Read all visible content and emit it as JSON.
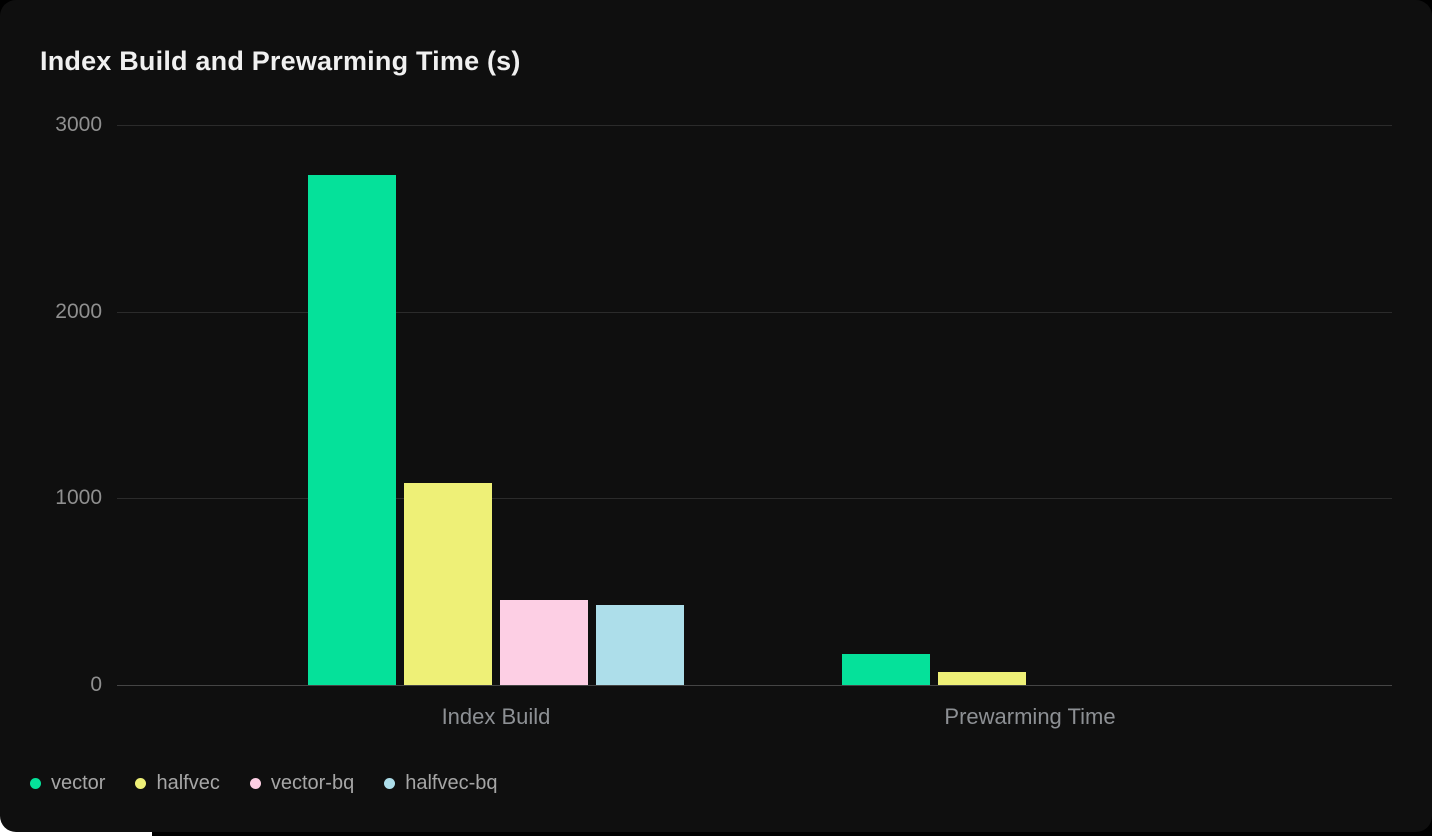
{
  "page": {
    "background_color": "#000000",
    "card_background_color": "#0f0f0f",
    "corner_peek_color": "#ffffff"
  },
  "chart_data": {
    "type": "bar",
    "title": "Index Build and Prewarming Time (s)",
    "categories": [
      "Index Build",
      "Prewarming Time"
    ],
    "series": [
      {
        "name": "vector",
        "color": "#05e19a",
        "values": [
          2730,
          165
        ]
      },
      {
        "name": "halfvec",
        "color": "#eef077",
        "values": [
          1080,
          70
        ]
      },
      {
        "name": "vector-bq",
        "color": "#fdcfe4",
        "values": [
          455,
          0
        ]
      },
      {
        "name": "halfvec-bq",
        "color": "#addeea",
        "values": [
          430,
          0
        ]
      }
    ],
    "xlabel": "",
    "ylabel": "",
    "ylim": [
      0,
      3000
    ],
    "yticks": [
      0,
      1000,
      2000,
      3000
    ],
    "grid": true,
    "legend_position": "bottom-left",
    "colors": {
      "title_text": "#f0f0f0",
      "tick_text": "#8f8f8f",
      "axis_label_text": "#8d9094",
      "legend_text": "#a6a6a6",
      "gridline": "#2b2b2b",
      "baseline": "#454545"
    }
  }
}
